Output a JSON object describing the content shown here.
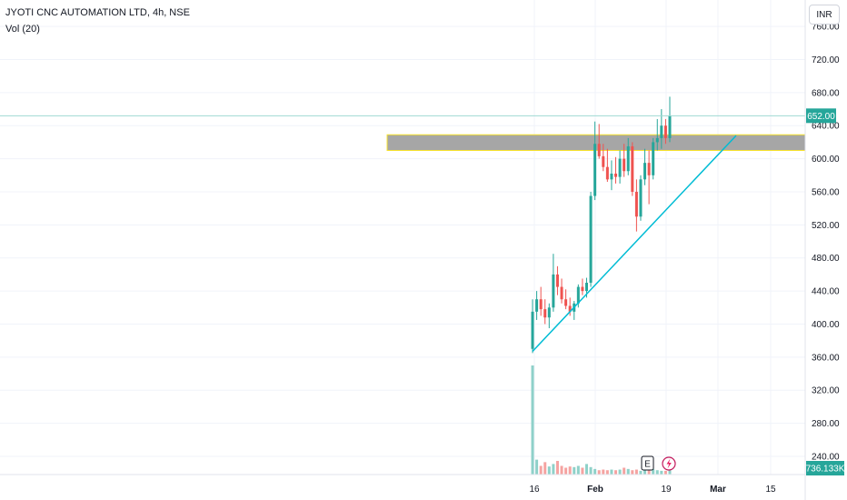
{
  "header": {
    "title": "JYOTI CNC AUTOMATION LTD, 4h, NSE",
    "indicator": "Vol (20)",
    "currency": "INR"
  },
  "colors": {
    "up": "#26a69a",
    "down": "#ef5350",
    "trendline": "#00bcd4",
    "zone_fill": "#a6a6a6",
    "zone_border": "#f7e22c",
    "grid": "#f0f3fa",
    "text": "#131722",
    "axis_text": "#131722",
    "price_label_bg": "#26a69a"
  },
  "markers": {
    "earnings": "E",
    "flash": "flash-icon"
  },
  "chart_data": {
    "type": "candlestick",
    "title": "JYOTI CNC AUTOMATION LTD, 4h, NSE",
    "y_ticks": [
      "760.00",
      "720.00",
      "680.00",
      "640.00",
      "600.00",
      "560.00",
      "520.00",
      "480.00",
      "440.00",
      "400.00",
      "360.00",
      "320.00",
      "280.00",
      "240.00"
    ],
    "y_range": [
      218,
      792
    ],
    "x_ticks": [
      "16",
      "Feb",
      "19",
      "Mar",
      "15"
    ],
    "last_price": "652.00",
    "last_volume": "736.133K",
    "grid": true,
    "resistance_zone": {
      "low": 610,
      "high": 629
    },
    "trendline": {
      "from_price": 367,
      "to_price": 628
    },
    "candles": [
      {
        "o": 370,
        "h": 430,
        "l": 365,
        "c": 415
      },
      {
        "o": 415,
        "h": 440,
        "l": 405,
        "c": 430
      },
      {
        "o": 430,
        "h": 445,
        "l": 410,
        "c": 418
      },
      {
        "o": 418,
        "h": 430,
        "l": 400,
        "c": 408
      },
      {
        "o": 408,
        "h": 425,
        "l": 395,
        "c": 420
      },
      {
        "o": 420,
        "h": 485,
        "l": 415,
        "c": 460
      },
      {
        "o": 460,
        "h": 470,
        "l": 435,
        "c": 445
      },
      {
        "o": 445,
        "h": 455,
        "l": 425,
        "c": 430
      },
      {
        "o": 430,
        "h": 442,
        "l": 418,
        "c": 422
      },
      {
        "o": 422,
        "h": 432,
        "l": 410,
        "c": 415
      },
      {
        "o": 415,
        "h": 428,
        "l": 405,
        "c": 425
      },
      {
        "o": 425,
        "h": 448,
        "l": 420,
        "c": 445
      },
      {
        "o": 445,
        "h": 455,
        "l": 435,
        "c": 440
      },
      {
        "o": 440,
        "h": 456,
        "l": 432,
        "c": 450
      },
      {
        "o": 450,
        "h": 560,
        "l": 445,
        "c": 555
      },
      {
        "o": 555,
        "h": 645,
        "l": 550,
        "c": 618
      },
      {
        "o": 618,
        "h": 642,
        "l": 600,
        "c": 603
      },
      {
        "o": 603,
        "h": 618,
        "l": 585,
        "c": 590
      },
      {
        "o": 590,
        "h": 612,
        "l": 572,
        "c": 575
      },
      {
        "o": 575,
        "h": 598,
        "l": 562,
        "c": 582
      },
      {
        "o": 582,
        "h": 602,
        "l": 570,
        "c": 578
      },
      {
        "o": 578,
        "h": 610,
        "l": 570,
        "c": 600
      },
      {
        "o": 600,
        "h": 618,
        "l": 578,
        "c": 585
      },
      {
        "o": 585,
        "h": 625,
        "l": 580,
        "c": 615
      },
      {
        "o": 615,
        "h": 620,
        "l": 555,
        "c": 560
      },
      {
        "o": 560,
        "h": 575,
        "l": 512,
        "c": 530
      },
      {
        "o": 530,
        "h": 580,
        "l": 525,
        "c": 575
      },
      {
        "o": 575,
        "h": 612,
        "l": 568,
        "c": 595
      },
      {
        "o": 595,
        "h": 610,
        "l": 545,
        "c": 580
      },
      {
        "o": 580,
        "h": 625,
        "l": 575,
        "c": 620
      },
      {
        "o": 620,
        "h": 648,
        "l": 610,
        "c": 625
      },
      {
        "o": 625,
        "h": 660,
        "l": 612,
        "c": 640
      },
      {
        "o": 640,
        "h": 648,
        "l": 618,
        "c": 625
      },
      {
        "o": 625,
        "h": 675,
        "l": 620,
        "c": 652
      }
    ],
    "volume": [
      880,
      120,
      70,
      100,
      65,
      85,
      110,
      70,
      55,
      65,
      60,
      70,
      55,
      85,
      60,
      45,
      35,
      40,
      35,
      40,
      35,
      40,
      55,
      45,
      35,
      40,
      30,
      35,
      40,
      45,
      35,
      30,
      30,
      40
    ]
  }
}
